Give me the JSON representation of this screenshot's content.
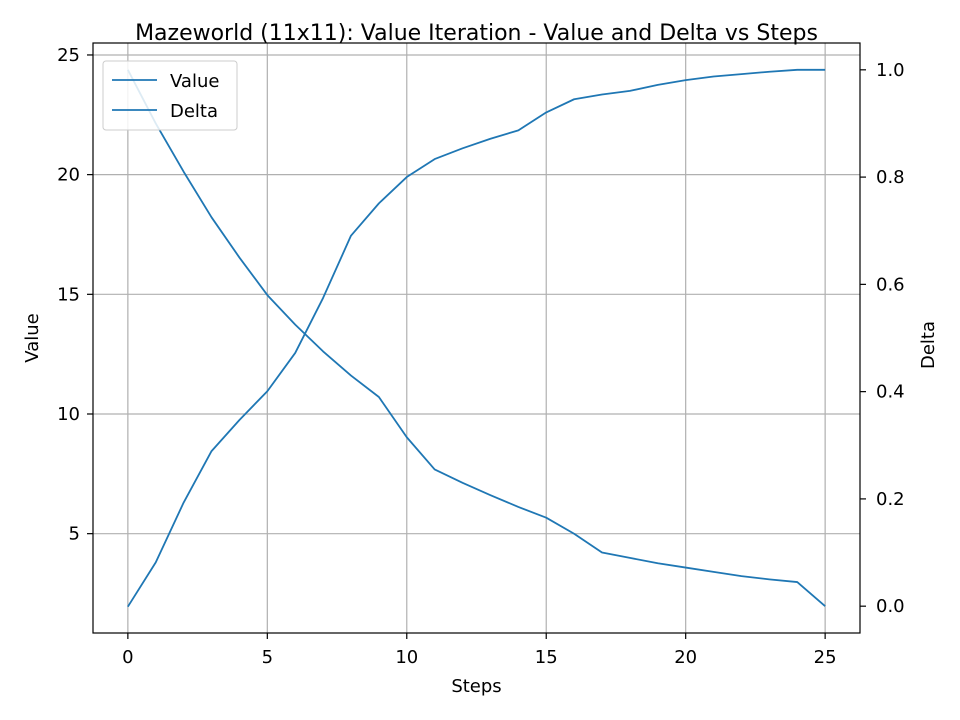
{
  "chart_data": {
    "type": "line",
    "title": "Mazeworld (11x11): Value Iteration - Value and Delta vs Steps",
    "xlabel": "Steps",
    "ylabel": "Value",
    "y2label": "Delta",
    "xlim": [
      -1.25,
      26.25
    ],
    "ylim": [
      0.85,
      25.5
    ],
    "y2lim": [
      -0.05,
      1.05
    ],
    "xticks": [
      0,
      5,
      10,
      15,
      20,
      25
    ],
    "yticks": [
      5,
      10,
      15,
      20,
      25
    ],
    "y2ticks": [
      "0.0",
      "0.2",
      "0.4",
      "0.6",
      "0.8",
      "1.0"
    ],
    "y2tick_values": [
      0.0,
      0.2,
      0.4,
      0.6,
      0.8,
      1.0
    ],
    "grid": true,
    "legend": {
      "position": "top-left",
      "entries": [
        "Value",
        "Delta"
      ]
    },
    "series_color": "#1f77b4",
    "x": [
      0,
      1,
      2,
      3,
      4,
      5,
      6,
      7,
      8,
      9,
      10,
      11,
      12,
      13,
      14,
      15,
      16,
      17,
      18,
      19,
      20,
      21,
      22,
      23,
      24,
      25
    ],
    "series": [
      {
        "name": "Value",
        "axis": "left",
        "values": [
          1.95,
          3.8,
          6.3,
          8.45,
          9.75,
          10.95,
          12.55,
          14.85,
          17.45,
          18.8,
          19.9,
          20.65,
          21.1,
          21.5,
          21.85,
          22.6,
          23.15,
          23.35,
          23.5,
          23.75,
          23.95,
          24.1,
          24.2,
          24.3,
          24.38,
          24.38
        ]
      },
      {
        "name": "Delta",
        "axis": "right",
        "values": [
          1.0,
          0.9,
          0.81,
          0.725,
          0.65,
          0.58,
          0.525,
          0.475,
          0.43,
          0.39,
          0.315,
          0.255,
          0.23,
          0.207,
          0.185,
          0.165,
          0.135,
          0.1,
          0.09,
          0.08,
          0.072,
          0.064,
          0.056,
          0.05,
          0.045,
          0.0
        ]
      }
    ]
  }
}
